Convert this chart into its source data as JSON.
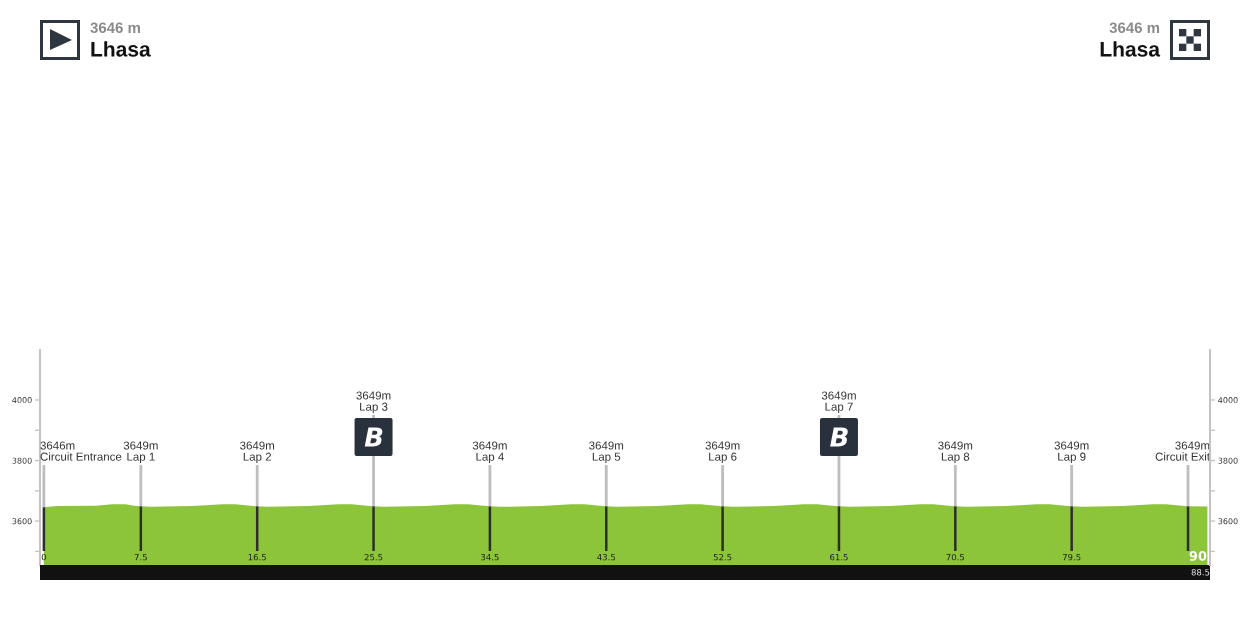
{
  "chart_data": {
    "type": "area",
    "x": [
      0,
      1.0,
      4.0,
      5.3,
      6.3,
      7.0,
      7.5,
      8.3,
      11.5,
      13.8,
      14.8,
      16.0,
      16.5,
      17.3,
      20.5,
      22.8,
      23.8,
      25.0,
      25.5,
      26.3,
      29.5,
      31.8,
      32.8,
      34.0,
      34.5,
      35.3,
      38.5,
      40.8,
      41.8,
      43.0,
      43.5,
      44.3,
      47.5,
      49.8,
      50.8,
      52.0,
      52.5,
      53.3,
      56.5,
      58.8,
      59.8,
      61.0,
      61.5,
      62.3,
      65.5,
      67.8,
      68.8,
      70.0,
      70.5,
      71.3,
      74.5,
      76.8,
      77.8,
      79.0,
      79.5,
      80.3,
      83.5,
      85.8,
      86.8,
      88.0,
      88.5,
      90.0
    ],
    "values": [
      3646,
      3650,
      3651,
      3656,
      3656,
      3651,
      3649,
      3647,
      3650,
      3656,
      3656,
      3651,
      3649,
      3647,
      3650,
      3656,
      3656,
      3651,
      3649,
      3647,
      3650,
      3656,
      3656,
      3651,
      3649,
      3647,
      3650,
      3656,
      3656,
      3651,
      3649,
      3647,
      3650,
      3656,
      3656,
      3651,
      3649,
      3647,
      3650,
      3656,
      3656,
      3651,
      3649,
      3647,
      3650,
      3656,
      3656,
      3651,
      3649,
      3647,
      3650,
      3656,
      3656,
      3651,
      3649,
      3647,
      3650,
      3656,
      3656,
      3651,
      3649,
      3648
    ],
    "color": "#8cc43a",
    "xlim": [
      -0.3,
      90.2
    ],
    "xticks": [
      0,
      7.5,
      16.5,
      25.5,
      34.5,
      43.5,
      52.5,
      61.5,
      70.5,
      79.5
    ],
    "ylim": [
      3455,
      4165
    ],
    "yticks": [
      {
        "value": 3500,
        "label": null
      },
      3600,
      {
        "value": 3700,
        "label": null
      },
      3800,
      {
        "value": 3900,
        "label": null
      },
      4000
    ],
    "y2lim": [
      3455,
      4165
    ],
    "y2ticks": [
      {
        "value": 3500,
        "label": null
      },
      3600,
      {
        "value": 3700,
        "label": null
      },
      3800,
      {
        "value": 3900,
        "label": null
      },
      4000
    ],
    "ref_lines": [
      {
        "axis": "x",
        "value": 0,
        "label": "3646m\nCircuit Entrance"
      },
      {
        "axis": "x",
        "value": 7.5,
        "label": "3649m\nLap 1"
      },
      {
        "axis": "x",
        "value": 16.5,
        "label": "3649m\nLap 2"
      },
      {
        "axis": "x",
        "value": 25.5,
        "label": "3649m\nLap 3"
      },
      {
        "axis": "x",
        "value": 34.5,
        "label": "3649m\nLap 4"
      },
      {
        "axis": "x",
        "value": 43.5,
        "label": "3649m\nLap 5"
      },
      {
        "axis": "x",
        "value": 52.5,
        "label": "3649m\nLap 6"
      },
      {
        "axis": "x",
        "value": 61.5,
        "label": "3649m\nLap 7"
      },
      {
        "axis": "x",
        "value": 70.5,
        "label": "3649m\nLap 8"
      },
      {
        "axis": "x",
        "value": 79.5,
        "label": "3649m\nLap 9"
      },
      {
        "axis": "x",
        "value": 88.5,
        "label": "3649m\nCircuit Exit"
      }
    ],
    "annotations": [
      "3646 m",
      "Lhasa",
      "3646 m",
      "Lhasa",
      "90",
      "88.5"
    ]
  }
}
